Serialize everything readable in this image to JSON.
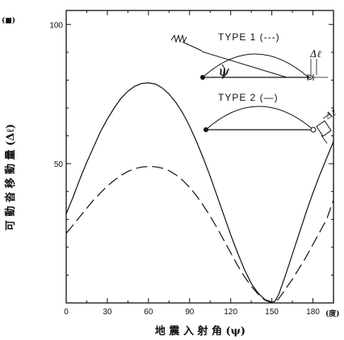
{
  "chart_data": {
    "type": "line",
    "x": [
      0,
      5,
      10,
      15,
      20,
      25,
      30,
      35,
      40,
      45,
      50,
      55,
      60,
      65,
      70,
      75,
      80,
      85,
      90,
      95,
      100,
      105,
      110,
      115,
      120,
      125,
      130,
      135,
      140,
      145,
      150,
      152,
      155,
      160,
      165,
      170,
      175,
      180,
      185,
      190,
      195
    ],
    "series": [
      {
        "name": "TYPE 1 (---)",
        "style": "dashed",
        "values": [
          25.0,
          28.0,
          31.0,
          34.0,
          37.0,
          39.5,
          42.0,
          44.0,
          45.8,
          47.2,
          48.2,
          48.8,
          49.0,
          48.9,
          48.4,
          47.5,
          46.0,
          44.0,
          41.5,
          38.5,
          35.0,
          31.2,
          27.0,
          22.5,
          18.0,
          13.5,
          9.5,
          6.0,
          3.2,
          1.0,
          0.0,
          0.3,
          1.5,
          5.0,
          8.5,
          12.5,
          16.5,
          21.0,
          25.5,
          30.0,
          37.0
        ]
      },
      {
        "name": "TYPE 2 (—)",
        "style": "solid",
        "values": [
          32.0,
          38.0,
          44.5,
          50.5,
          56.0,
          61.5,
          66.0,
          70.0,
          73.5,
          76.0,
          77.8,
          78.8,
          79.0,
          78.6,
          77.2,
          75.0,
          72.0,
          68.2,
          63.5,
          58.0,
          52.0,
          45.5,
          38.5,
          31.5,
          24.5,
          18.0,
          12.0,
          7.0,
          3.5,
          1.2,
          0.3,
          0.5,
          3.0,
          10.0,
          17.5,
          25.0,
          32.5,
          39.5,
          46.0,
          52.0,
          58.0
        ]
      }
    ],
    "xlabel": "地 震 入 射 角 (ψ)",
    "ylabel": "可 動 沓 移 動 量 (Δℓ)",
    "x_unit": "(度)",
    "y_unit": "(■)",
    "xlim": [
      0,
      195
    ],
    "ylim": [
      0,
      105
    ],
    "x_ticks": [
      0,
      30,
      60,
      90,
      120,
      150,
      180
    ],
    "y_ticks": [
      50,
      100
    ],
    "grid": false,
    "legend_position": "top-right",
    "inset_symbols": {
      "angle": "ψ",
      "displacement": "Δℓ"
    }
  }
}
